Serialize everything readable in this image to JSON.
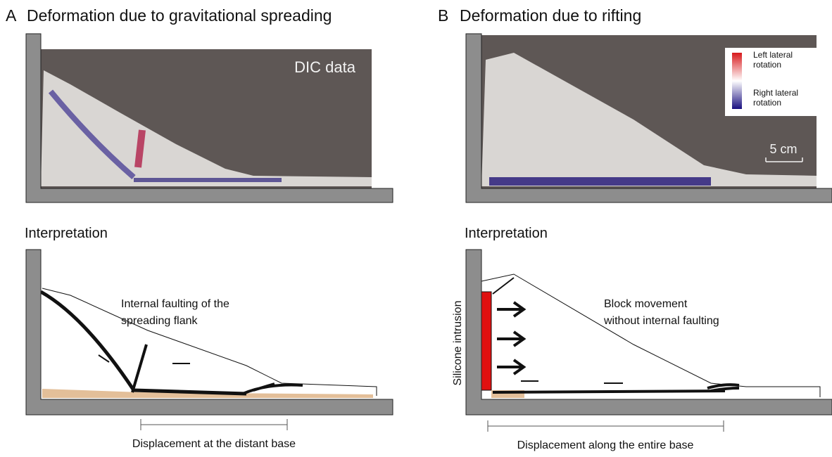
{
  "panels": [
    {
      "label": "A",
      "title": "Deformation due to gravitational spreading",
      "photo_label": "DIC data",
      "interpretation": "Interpretation",
      "annotation": [
        "Internal faulting of the",
        "spreading flank"
      ],
      "displacement": "Displacement at the distant base"
    },
    {
      "label": "B",
      "title": "Deformation due to rifting",
      "legend": {
        "top": [
          "Left lateral",
          "rotation"
        ],
        "bottom": [
          "Right lateral",
          "rotation"
        ]
      },
      "scale": "5 cm",
      "interpretation": "Interpretation",
      "side_label": "Silicone intrusion",
      "annotation": [
        "Block movement",
        "without internal faulting"
      ],
      "displacement": "Displacement along the entire base"
    }
  ]
}
